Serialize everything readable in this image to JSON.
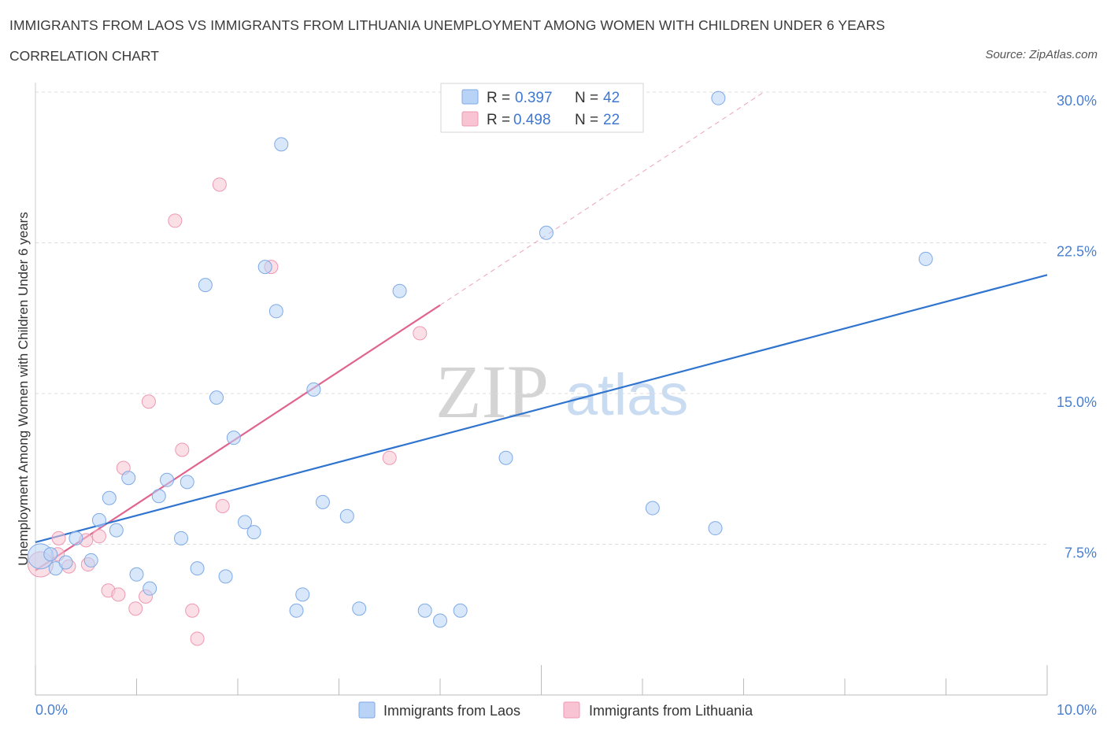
{
  "header": {
    "title": "IMMIGRANTS FROM LAOS VS IMMIGRANTS FROM LITHUANIA UNEMPLOYMENT AMONG WOMEN WITH CHILDREN UNDER 6 YEARS",
    "subtitle": "CORRELATION CHART",
    "source": "Source: ZipAtlas.com"
  },
  "watermark": {
    "zip": "ZIP",
    "atlas": "atlas"
  },
  "colors": {
    "laos_fill": "#b9d3f6",
    "laos_stroke": "#7eaae6",
    "laos_line": "#2f74cf",
    "lithuania_fill": "#f8c4d4",
    "lithuania_stroke": "#ee98b3",
    "lithuania_line": "#e0648e",
    "grid": "#dddddd",
    "tick_text": "#4a7fd0"
  },
  "legend": {
    "r_label": "R =",
    "n_label": "N =",
    "rows": [
      {
        "series": "laos",
        "r": "0.397",
        "n": "42"
      },
      {
        "series": "lithuania",
        "r": "0.498",
        "n": "22"
      }
    ]
  },
  "chart_data": {
    "type": "scatter",
    "title": "IMMIGRANTS FROM LAOS VS IMMIGRANTS FROM LITHUANIA UNEMPLOYMENT AMONG WOMEN WITH CHILDREN UNDER 6 YEARS",
    "subtitle": "CORRELATION CHART",
    "xlabel": "",
    "ylabel": "Unemployment Among Women with Children Under 6 years",
    "xlim": [
      0,
      10
    ],
    "ylim": [
      0,
      30
    ],
    "x_tick_labels": [
      "0.0%",
      "10.0%"
    ],
    "y_ticks": [
      7.5,
      15.0,
      22.5,
      30.0
    ],
    "y_tick_labels": [
      "7.5%",
      "15.0%",
      "22.5%",
      "30.0%"
    ],
    "grid": true,
    "legend_position": "top-center",
    "series": [
      {
        "name": "Immigrants from Laos",
        "r": 0.397,
        "n": 42,
        "trendline": {
          "x": [
            0,
            10
          ],
          "y": [
            7.6,
            20.9
          ]
        },
        "points": [
          {
            "x": 0.05,
            "y": 6.9,
            "size": "large"
          },
          {
            "x": 0.15,
            "y": 7.0
          },
          {
            "x": 0.2,
            "y": 6.3
          },
          {
            "x": 0.4,
            "y": 7.8
          },
          {
            "x": 0.55,
            "y": 6.7
          },
          {
            "x": 0.63,
            "y": 8.7
          },
          {
            "x": 0.73,
            "y": 9.8
          },
          {
            "x": 0.8,
            "y": 8.2
          },
          {
            "x": 0.92,
            "y": 10.8
          },
          {
            "x": 1.0,
            "y": 6.0
          },
          {
            "x": 1.13,
            "y": 5.3
          },
          {
            "x": 1.22,
            "y": 9.9
          },
          {
            "x": 1.3,
            "y": 10.7
          },
          {
            "x": 1.44,
            "y": 7.8
          },
          {
            "x": 1.5,
            "y": 10.6
          },
          {
            "x": 1.6,
            "y": 6.3
          },
          {
            "x": 1.68,
            "y": 20.4
          },
          {
            "x": 1.79,
            "y": 14.8
          },
          {
            "x": 1.88,
            "y": 5.9
          },
          {
            "x": 1.96,
            "y": 12.8
          },
          {
            "x": 2.07,
            "y": 8.6
          },
          {
            "x": 2.16,
            "y": 8.1
          },
          {
            "x": 2.27,
            "y": 21.3
          },
          {
            "x": 2.38,
            "y": 19.1
          },
          {
            "x": 2.43,
            "y": 27.4
          },
          {
            "x": 2.58,
            "y": 4.2
          },
          {
            "x": 2.64,
            "y": 5.0
          },
          {
            "x": 2.75,
            "y": 15.2
          },
          {
            "x": 2.84,
            "y": 9.6
          },
          {
            "x": 3.08,
            "y": 8.9
          },
          {
            "x": 3.2,
            "y": 4.3
          },
          {
            "x": 3.6,
            "y": 20.1
          },
          {
            "x": 3.85,
            "y": 4.2
          },
          {
            "x": 4.0,
            "y": 3.7
          },
          {
            "x": 4.2,
            "y": 4.2
          },
          {
            "x": 4.65,
            "y": 11.8
          },
          {
            "x": 5.05,
            "y": 23.0
          },
          {
            "x": 6.1,
            "y": 9.3
          },
          {
            "x": 6.72,
            "y": 8.3
          },
          {
            "x": 6.75,
            "y": 29.7
          },
          {
            "x": 8.8,
            "y": 21.7
          },
          {
            "x": 0.3,
            "y": 6.6
          }
        ]
      },
      {
        "name": "Immigrants from Lithuania",
        "r": 0.498,
        "n": 22,
        "trendline": {
          "x": [
            0,
            4.0
          ],
          "y": [
            6.2,
            19.4
          ],
          "dashed_extension_to": {
            "x": 7.2,
            "y": 30.0
          }
        },
        "points": [
          {
            "x": 0.05,
            "y": 6.5,
            "size": "large"
          },
          {
            "x": 0.22,
            "y": 7.0
          },
          {
            "x": 0.23,
            "y": 7.8
          },
          {
            "x": 0.33,
            "y": 6.4
          },
          {
            "x": 0.5,
            "y": 7.7
          },
          {
            "x": 0.52,
            "y": 6.5
          },
          {
            "x": 0.63,
            "y": 7.9
          },
          {
            "x": 0.72,
            "y": 5.2
          },
          {
            "x": 0.82,
            "y": 5.0
          },
          {
            "x": 0.87,
            "y": 11.3
          },
          {
            "x": 0.99,
            "y": 4.3
          },
          {
            "x": 1.09,
            "y": 4.9
          },
          {
            "x": 1.12,
            "y": 14.6
          },
          {
            "x": 1.38,
            "y": 23.6
          },
          {
            "x": 1.45,
            "y": 12.2
          },
          {
            "x": 1.55,
            "y": 4.2
          },
          {
            "x": 1.6,
            "y": 2.8
          },
          {
            "x": 1.82,
            "y": 25.4
          },
          {
            "x": 1.85,
            "y": 9.4
          },
          {
            "x": 2.33,
            "y": 21.3
          },
          {
            "x": 3.5,
            "y": 11.8
          },
          {
            "x": 3.8,
            "y": 18.0
          }
        ]
      }
    ]
  },
  "bottom_legend": {
    "items": [
      {
        "series": "laos",
        "label": "Immigrants from Laos"
      },
      {
        "series": "lithuania",
        "label": "Immigrants from Lithuania"
      }
    ]
  }
}
